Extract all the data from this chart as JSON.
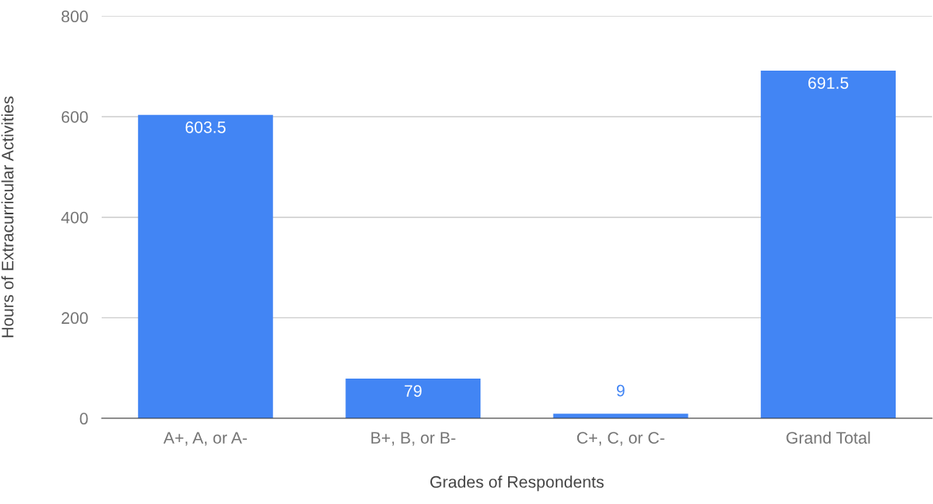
{
  "chart_data": {
    "type": "bar",
    "xlabel": "Grades of Respondents",
    "ylabel": "Hours of Extracurricular Activities",
    "categories": [
      "A+, A, or A-",
      "B+, B, or B-",
      "C+, C, or C-",
      "Grand Total"
    ],
    "values": [
      603.5,
      79,
      9,
      691.5
    ],
    "color": "#4285f4",
    "ylim": [
      0,
      800
    ],
    "yticks": [
      0,
      200,
      400,
      600,
      800
    ],
    "grid": "y",
    "data_labels": true
  }
}
